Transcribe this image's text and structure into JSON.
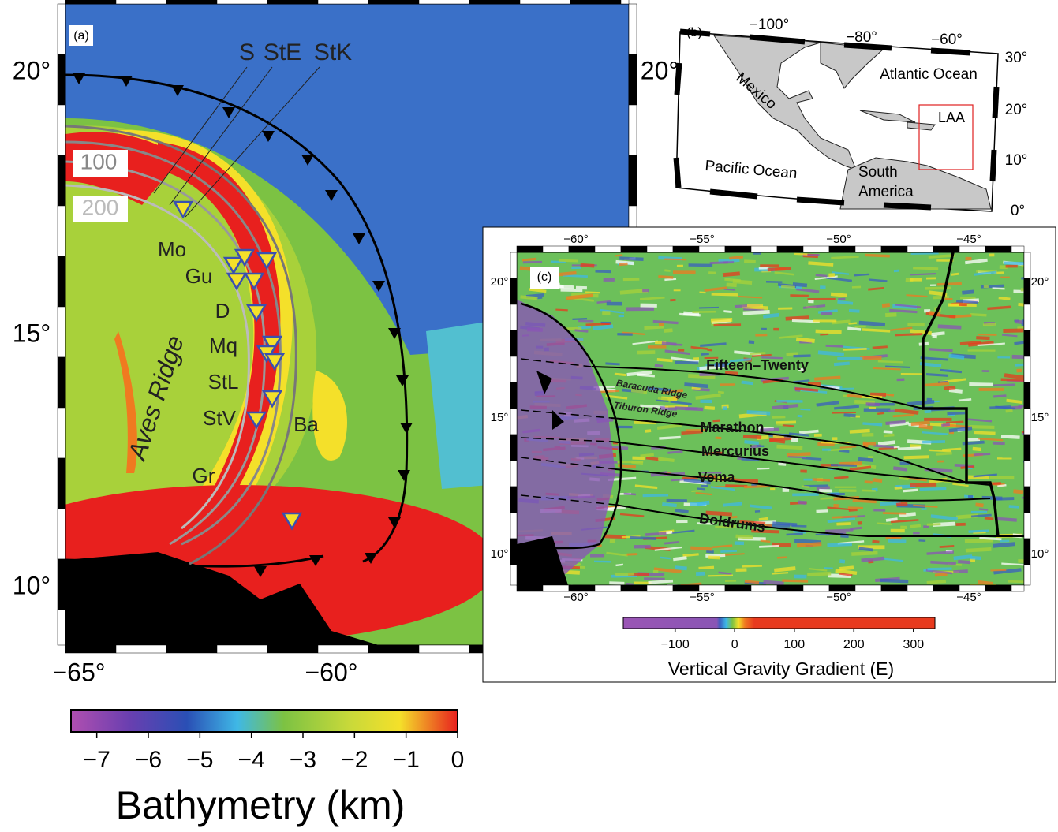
{
  "panel_a": {
    "tag": "(a)",
    "lat_labels": [
      "20°",
      "15°",
      "10°"
    ],
    "lon_labels": [
      "−65°",
      "−60°"
    ],
    "right_lat_label": "20°",
    "section_labels": [
      "S",
      "StE",
      "StK"
    ],
    "contour_labels": [
      "100",
      "200"
    ],
    "island_labels": [
      "Mo",
      "Gu",
      "D",
      "Mq",
      "StL",
      "StV",
      "Gr",
      "Ba"
    ],
    "ridge_label": "Aves Ridge",
    "colorbar": {
      "title": "Bathymetry (km)",
      "lim": [
        -7.5,
        0
      ],
      "ticks": [
        {
          "value": -7,
          "label": "−7"
        },
        {
          "value": -6,
          "label": "−6"
        },
        {
          "value": -5,
          "label": "−5"
        },
        {
          "value": -4,
          "label": "−4"
        },
        {
          "value": -3,
          "label": "−3"
        },
        {
          "value": -2,
          "label": "−2"
        },
        {
          "value": -1,
          "label": "−1"
        },
        0
      ]
    }
  },
  "panel_b": {
    "tag": "(b)",
    "lon_labels": [
      "−100°",
      "−80°",
      "−60°"
    ],
    "lat_labels": [
      "30°",
      "20°",
      "10°",
      "0°"
    ],
    "place_labels": [
      "Mexico",
      "Atlantic Ocean",
      "LAA",
      "Pacific Ocean",
      "South America"
    ]
  },
  "panel_c": {
    "tag": "(c)",
    "lon_labels": [
      "−60°",
      "−55°",
      "−50°",
      "−45°"
    ],
    "lat_labels": [
      "20°",
      "15°",
      "10°"
    ],
    "fracture_zones": [
      "Fifteen–Twenty",
      "Marathon",
      "Mercurius",
      "Vema",
      "Doldrums"
    ],
    "ridges": [
      "Baracuda Ridge",
      "Tiburon Ridge"
    ],
    "colorbar": {
      "title": "Vertical Gravity Gradient (E)",
      "lim": [
        -187,
        336
      ],
      "ticks": [
        {
          "value": -100,
          "label": "−100"
        },
        0,
        100,
        200,
        300
      ]
    }
  }
}
